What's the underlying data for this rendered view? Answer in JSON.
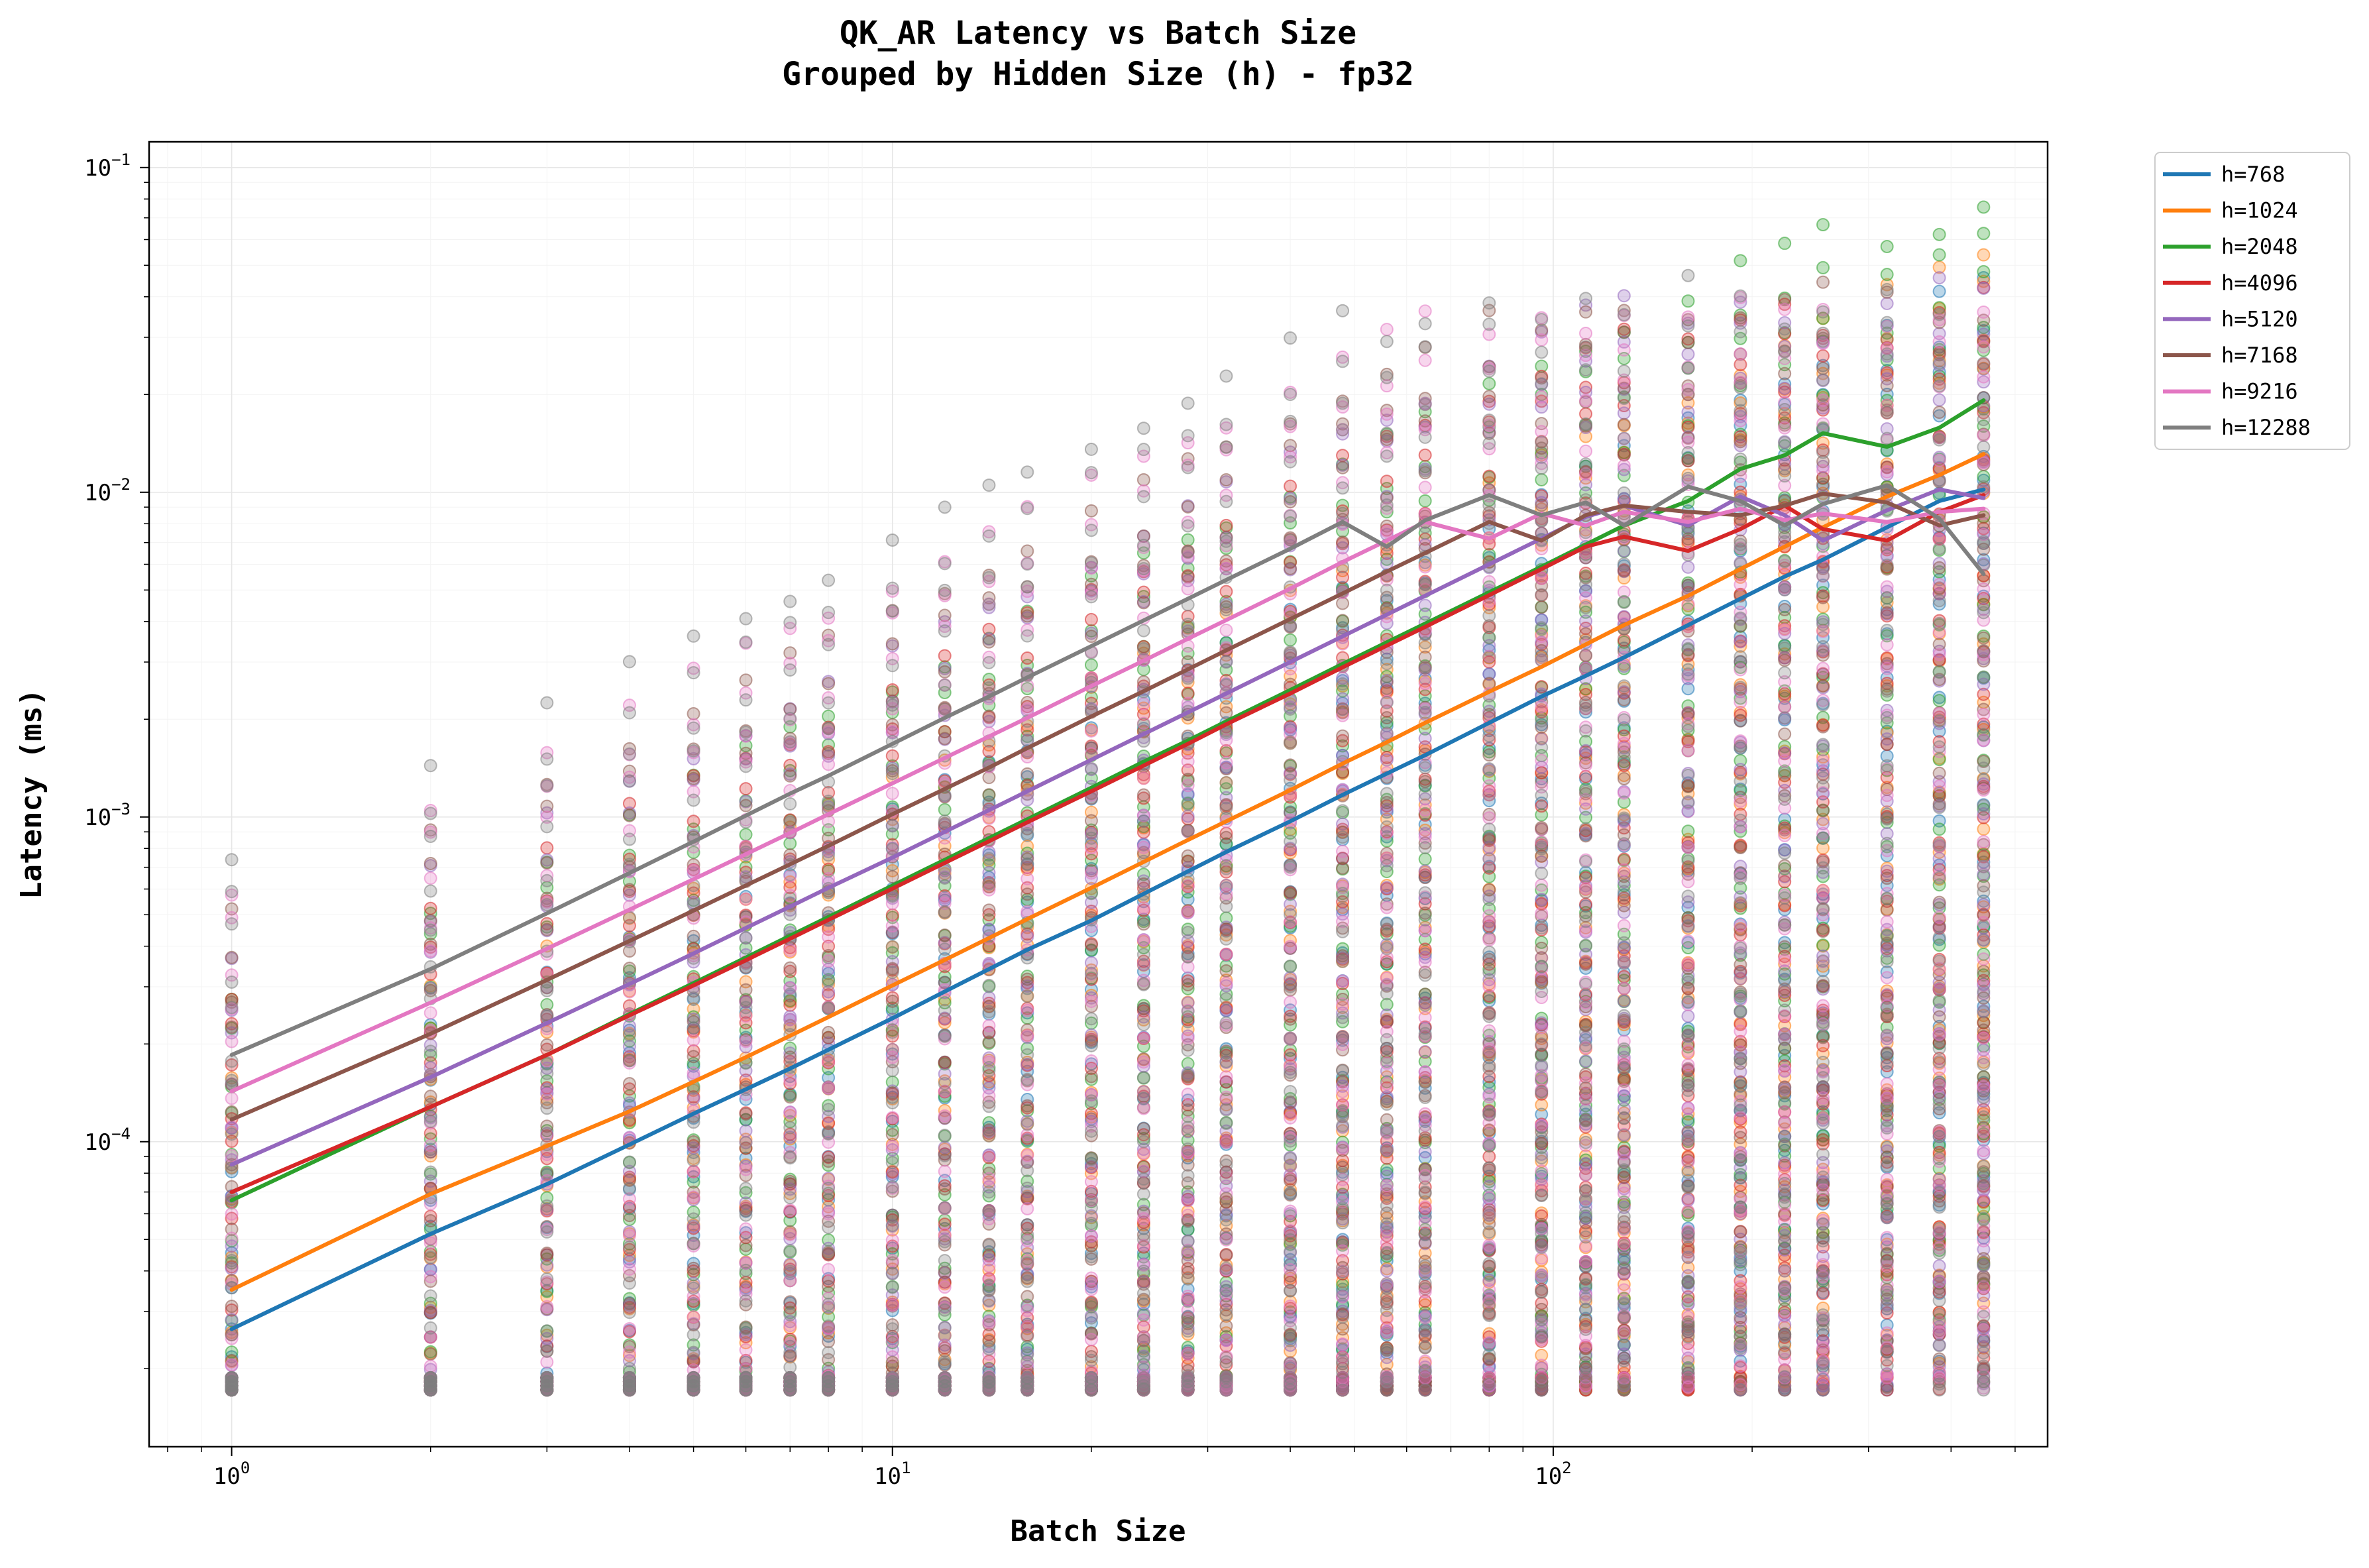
{
  "chart_data": {
    "type": "line",
    "title": "QK_AR Latency vs Batch Size",
    "subtitle": "Grouped by Hidden Size (h) - fp32",
    "xlabel": "Batch Size",
    "ylabel": "Latency (ms)",
    "xscale": "log",
    "yscale": "log",
    "xlim": [
      0.75,
      560
    ],
    "ylim": [
      1.15e-05,
      0.12
    ],
    "grid": true,
    "legend_position": "outside-right-top",
    "x_ticks": [
      {
        "base": "10",
        "exp": "0",
        "value": 1
      },
      {
        "base": "10",
        "exp": "1",
        "value": 10
      },
      {
        "base": "10",
        "exp": "2",
        "value": 100
      }
    ],
    "y_ticks": [
      {
        "base": "10",
        "exp": "−1",
        "value": 0.1
      },
      {
        "base": "10",
        "exp": "−2",
        "value": 0.01
      },
      {
        "base": "10",
        "exp": "−3",
        "value": 0.001
      },
      {
        "base": "10",
        "exp": "−4",
        "value": 0.0001
      }
    ],
    "x": [
      1,
      2,
      3,
      4,
      5,
      6,
      7,
      8,
      10,
      12,
      14,
      16,
      20,
      24,
      28,
      32,
      40,
      48,
      56,
      64,
      80,
      96,
      112,
      128,
      160,
      192,
      224,
      256,
      320,
      384,
      448
    ],
    "series": [
      {
        "name": "h=768",
        "color": "#1f77b4",
        "values": [
          2.65e-05,
          5.2e-05,
          7.4e-05,
          9.8e-05,
          0.000122,
          0.000145,
          0.000168,
          0.000192,
          0.00024,
          0.00029,
          0.00034,
          0.00039,
          0.00048,
          0.00058,
          0.00068,
          0.00078,
          0.00097,
          0.00117,
          0.00136,
          0.00155,
          0.00195,
          0.00235,
          0.00272,
          0.0031,
          0.0039,
          0.0047,
          0.0055,
          0.0062,
          0.0078,
          0.0094,
          0.0102
        ]
      },
      {
        "name": "h=1024",
        "color": "#ff7f0e",
        "values": [
          3.5e-05,
          6.9e-05,
          9.7e-05,
          0.000124,
          0.000153,
          0.000182,
          0.000212,
          0.000242,
          0.000303,
          0.000363,
          0.000424,
          0.000485,
          0.000605,
          0.000727,
          0.00085,
          0.00097,
          0.00121,
          0.00146,
          0.0017,
          0.00195,
          0.00243,
          0.0029,
          0.0034,
          0.0039,
          0.0048,
          0.0058,
          0.0068,
          0.0078,
          0.0097,
          0.0113,
          0.0131
        ]
      },
      {
        "name": "h=2048",
        "color": "#2ca02c",
        "values": [
          6.6e-05,
          0.000128,
          0.000185,
          0.000247,
          0.000308,
          0.000369,
          0.000431,
          0.000492,
          0.000615,
          0.000738,
          0.000861,
          0.000984,
          0.00123,
          0.00148,
          0.00172,
          0.00197,
          0.00246,
          0.00296,
          0.00345,
          0.00394,
          0.00492,
          0.0059,
          0.0069,
          0.0079,
          0.0094,
          0.0118,
          0.013,
          0.0152,
          0.0138,
          0.0158,
          0.0192
        ]
      },
      {
        "name": "h=4096",
        "color": "#d62728",
        "values": [
          7e-05,
          0.000128,
          0.000185,
          0.000245,
          0.000303,
          0.000362,
          0.000422,
          0.000482,
          0.000602,
          0.000722,
          0.000842,
          0.000963,
          0.0012,
          0.00144,
          0.00168,
          0.00193,
          0.0024,
          0.00289,
          0.00337,
          0.00385,
          0.00482,
          0.0058,
          0.0068,
          0.0073,
          0.0066,
          0.0077,
          0.0091,
          0.0077,
          0.0071,
          0.0087,
          0.0098
        ]
      },
      {
        "name": "h=5120",
        "color": "#9467bd",
        "values": [
          8.5e-05,
          0.000158,
          0.000232,
          0.000306,
          0.00038,
          0.000455,
          0.00053,
          0.000605,
          0.00075,
          0.0009,
          0.00105,
          0.0012,
          0.0015,
          0.0018,
          0.0021,
          0.0024,
          0.003,
          0.0036,
          0.0042,
          0.0048,
          0.006,
          0.0072,
          0.0084,
          0.0091,
          0.0079,
          0.0097,
          0.0085,
          0.0071,
          0.0088,
          0.0102,
          0.0096
        ]
      },
      {
        "name": "h=7168",
        "color": "#8c564b",
        "values": [
          0.000117,
          0.000215,
          0.000315,
          0.000415,
          0.000515,
          0.000615,
          0.000715,
          0.000815,
          0.00102,
          0.00122,
          0.00142,
          0.00163,
          0.00204,
          0.00244,
          0.00285,
          0.00326,
          0.00407,
          0.00488,
          0.0057,
          0.0065,
          0.0081,
          0.0071,
          0.0085,
          0.0091,
          0.0087,
          0.0085,
          0.0091,
          0.0099,
          0.0093,
          0.0079,
          0.0085
        ]
      },
      {
        "name": "h=9216",
        "color": "#e377c2",
        "values": [
          0.000143,
          0.000268,
          0.000393,
          0.000518,
          0.000643,
          0.000768,
          0.000893,
          0.00102,
          0.00127,
          0.00152,
          0.00177,
          0.00202,
          0.00253,
          0.00303,
          0.00354,
          0.00404,
          0.00505,
          0.0061,
          0.0071,
          0.0081,
          0.0072,
          0.0086,
          0.0079,
          0.0087,
          0.0081,
          0.0089,
          0.0082,
          0.0086,
          0.0081,
          0.0087,
          0.0089
        ]
      },
      {
        "name": "h=12288",
        "color": "#7f7f7f",
        "values": [
          0.000185,
          0.00034,
          0.000505,
          0.000672,
          0.00084,
          0.00101,
          0.00118,
          0.00134,
          0.00168,
          0.00202,
          0.00235,
          0.00269,
          0.00336,
          0.00403,
          0.0047,
          0.00537,
          0.0067,
          0.0081,
          0.0068,
          0.0082,
          0.0098,
          0.0085,
          0.0093,
          0.0079,
          0.0104,
          0.0094,
          0.0079,
          0.0092,
          0.0105,
          0.0083,
          0.0056
        ]
      }
    ]
  }
}
